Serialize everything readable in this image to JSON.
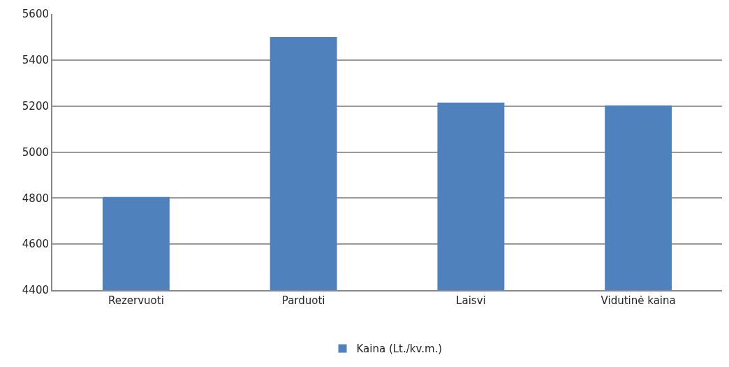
{
  "chart_data": {
    "type": "bar",
    "categories": [
      "Rezervuoti",
      "Parduoti",
      "Laisvi",
      "Vidutinė kaina"
    ],
    "series": [
      {
        "name": "Kaina (Lt./kv.m.)",
        "color": "#4f81bd",
        "values": [
          4805,
          5500,
          5215,
          5203
        ]
      }
    ],
    "ylim": [
      4400,
      5600
    ],
    "yticks": [
      4400,
      4600,
      4800,
      5000,
      5200,
      5400,
      5600
    ],
    "grid": "y",
    "legend": "bottom"
  }
}
